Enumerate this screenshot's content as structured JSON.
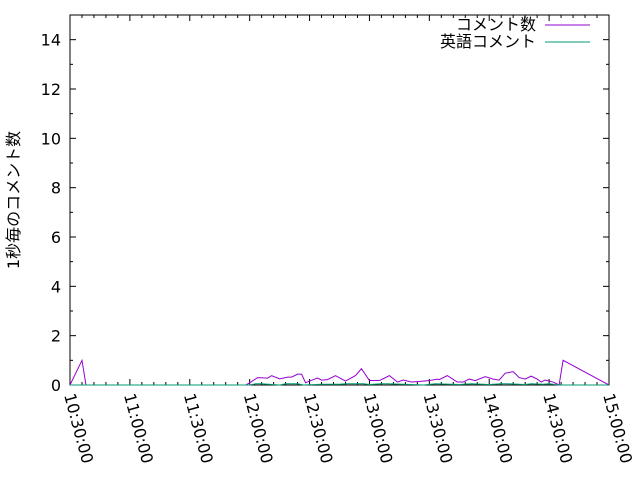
{
  "chart_data": {
    "type": "line",
    "title": "",
    "xlabel": "",
    "ylabel": "1秒毎のコメント数",
    "xlim": [
      "10:30:00",
      "15:00:00"
    ],
    "ylim": [
      0,
      15
    ],
    "x_ticks": [
      "10:30:00",
      "11:00:00",
      "11:30:00",
      "12:00:00",
      "12:30:00",
      "13:00:00",
      "13:30:00",
      "14:00:00",
      "14:30:00",
      "15:00:00"
    ],
    "y_ticks": [
      0,
      2,
      4,
      6,
      8,
      10,
      12,
      14
    ],
    "grid": false,
    "legend_position": "top-right",
    "series": [
      {
        "name": "コメント数",
        "color": "#9400d3",
        "x": [
          "10:36:00",
          "10:38:00",
          "11:58:00",
          "12:00:00",
          "12:04:00",
          "12:09:00",
          "12:11:00",
          "12:15:00",
          "12:19:00",
          "12:21:00",
          "12:24:00",
          "12:26:00",
          "12:28:00",
          "12:30:00",
          "12:34:00",
          "12:36:00",
          "12:39:00",
          "12:43:00",
          "12:48:00",
          "12:53:00",
          "12:56:00",
          "13:00:00",
          "13:05:00",
          "13:10:00",
          "13:14:00",
          "13:17:00",
          "13:21:00",
          "13:25:00",
          "13:30:00",
          "13:34:00",
          "13:35:00",
          "13:39:00",
          "13:44:00",
          "13:47:00",
          "13:50:00",
          "13:53:00",
          "13:58:00",
          "14:02:00",
          "14:05:00",
          "14:08:00",
          "14:12:00",
          "14:15:00",
          "14:18:00",
          "14:21:00",
          "14:24:00",
          "14:26:00",
          "14:28:00",
          "14:32:00",
          "14:35:00",
          "14:37:00"
        ],
        "y": [
          1.0,
          0,
          0,
          0.09,
          0.3,
          0.28,
          0.38,
          0.25,
          0.32,
          0.32,
          0.44,
          0.44,
          0.09,
          0.16,
          0.28,
          0.2,
          0.22,
          0.38,
          0.16,
          0.38,
          0.66,
          0.18,
          0.18,
          0.38,
          0.12,
          0.2,
          0.12,
          0.14,
          0.18,
          0.24,
          0.22,
          0.38,
          0.12,
          0.12,
          0.24,
          0.18,
          0.34,
          0.24,
          0.2,
          0.48,
          0.54,
          0.3,
          0.24,
          0.36,
          0.24,
          0.12,
          0.2,
          0.12,
          0,
          1.0
        ]
      },
      {
        "name": "英語コメント",
        "color": "#009e73",
        "x": [
          "12:00:00",
          "12:03:00",
          "12:06:00",
          "12:15:00",
          "12:18:00",
          "12:24:00",
          "12:27:00",
          "12:36:00",
          "12:45:00",
          "12:48:00",
          "12:57:00",
          "13:00:00",
          "13:06:00",
          "13:09:00",
          "13:21:00",
          "13:27:00",
          "13:33:00",
          "13:45:00",
          "13:51:00",
          "14:00:00",
          "14:06:00",
          "14:09:00",
          "14:18:00",
          "14:21:00",
          "14:27:00",
          "14:30:00",
          "14:35:00"
        ],
        "y": [
          0,
          0.05,
          0.05,
          0,
          0.05,
          0.05,
          0,
          0.03,
          0.03,
          0.05,
          0.05,
          0.02,
          0.05,
          0.05,
          0.02,
          0,
          0.05,
          0.02,
          0.05,
          0.02,
          0.05,
          0.05,
          0.02,
          0.05,
          0.03,
          0.05,
          0
        ]
      }
    ]
  }
}
